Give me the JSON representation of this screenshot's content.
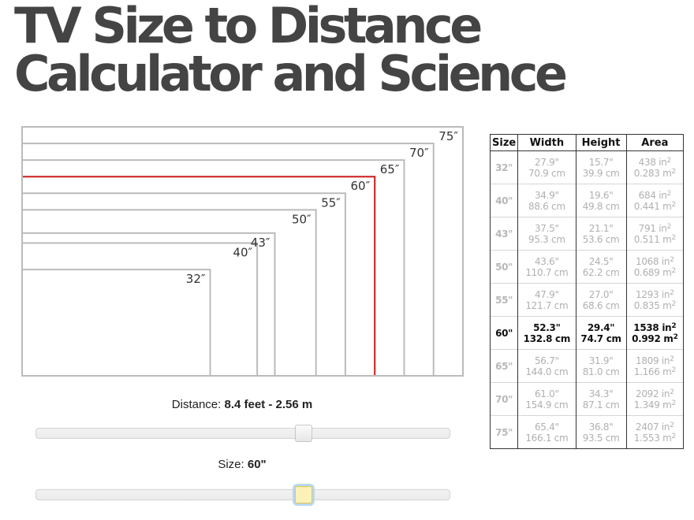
{
  "title": {
    "line1": "TV Size to Distance",
    "line2": "Calculator and Science"
  },
  "diagram": {
    "selected_size": "60″",
    "highlight_color": "#d42020",
    "frame_color": "#bbbbbb",
    "sizes": [
      "32″",
      "40″",
      "43″",
      "50″",
      "55″",
      "60″",
      "65″",
      "70″",
      "75″"
    ]
  },
  "distance": {
    "label": "Distance:",
    "value": "8.4 feet - 2.56 m",
    "slider_position": 0.65
  },
  "size": {
    "label": "Size:",
    "value": "60\"",
    "slider_position": 0.65
  },
  "table": {
    "headers": [
      "Size",
      "Width",
      "Height",
      "Area"
    ],
    "rows": [
      {
        "size": "32\"",
        "width_in": "27.9\"",
        "width_cm": "70.9 cm",
        "height_in": "15.7\"",
        "height_cm": "39.9 cm",
        "area_in": "438 in",
        "area_m": "0.283 m",
        "selected": false
      },
      {
        "size": "40\"",
        "width_in": "34.9\"",
        "width_cm": "88.6 cm",
        "height_in": "19.6\"",
        "height_cm": "49.8 cm",
        "area_in": "684 in",
        "area_m": "0.441 m",
        "selected": false
      },
      {
        "size": "43\"",
        "width_in": "37.5\"",
        "width_cm": "95.3 cm",
        "height_in": "21.1\"",
        "height_cm": "53.6 cm",
        "area_in": "791 in",
        "area_m": "0.511 m",
        "selected": false
      },
      {
        "size": "50\"",
        "width_in": "43.6\"",
        "width_cm": "110.7 cm",
        "height_in": "24.5\"",
        "height_cm": "62.2 cm",
        "area_in": "1068 in",
        "area_m": "0.689 m",
        "selected": false
      },
      {
        "size": "55\"",
        "width_in": "47.9\"",
        "width_cm": "121.7 cm",
        "height_in": "27.0\"",
        "height_cm": "68.6 cm",
        "area_in": "1293 in",
        "area_m": "0.835 m",
        "selected": false
      },
      {
        "size": "60\"",
        "width_in": "52.3\"",
        "width_cm": "132.8 cm",
        "height_in": "29.4\"",
        "height_cm": "74.7 cm",
        "area_in": "1538 in",
        "area_m": "0.992 m",
        "selected": true
      },
      {
        "size": "65\"",
        "width_in": "56.7\"",
        "width_cm": "144.0 cm",
        "height_in": "31.9\"",
        "height_cm": "81.0 cm",
        "area_in": "1809 in",
        "area_m": "1.166 m",
        "selected": false
      },
      {
        "size": "70\"",
        "width_in": "61.0\"",
        "width_cm": "154.9 cm",
        "height_in": "34.3\"",
        "height_cm": "87.1 cm",
        "area_in": "2092 in",
        "area_m": "1.349 m",
        "selected": false
      },
      {
        "size": "75\"",
        "width_in": "65.4\"",
        "width_cm": "166.1 cm",
        "height_in": "36.8\"",
        "height_cm": "93.5 cm",
        "area_in": "2407 in",
        "area_m": "1.553 m",
        "selected": false
      }
    ]
  }
}
